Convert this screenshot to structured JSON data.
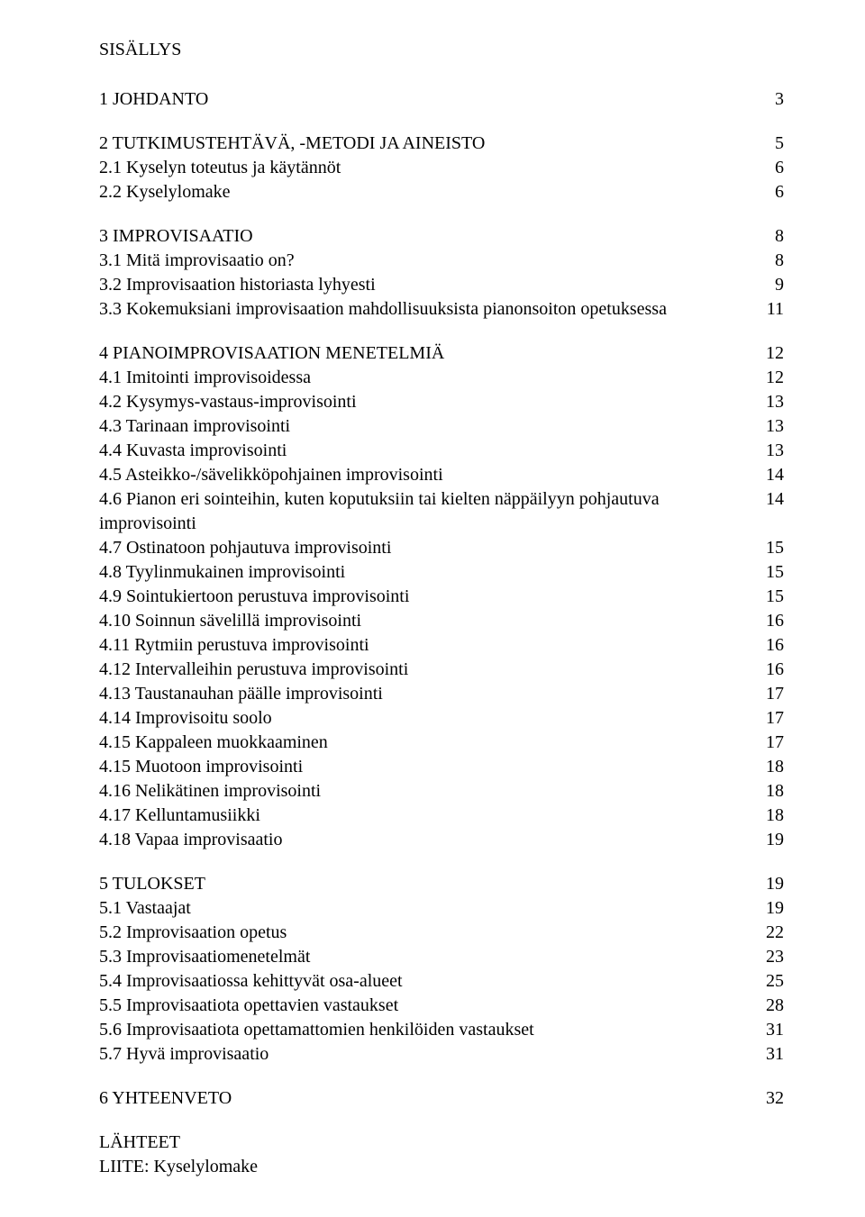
{
  "title": "SISÄLLYS",
  "sections": [
    {
      "heading": {
        "label": "1 JOHDANTO",
        "page": "3"
      },
      "subs": []
    },
    {
      "heading": {
        "label": "2 TUTKIMUSTEHTÄVÄ, -METODI JA AINEISTO",
        "page": "5"
      },
      "subs": [
        {
          "label": "2.1 Kyselyn toteutus ja käytännöt",
          "page": "6"
        },
        {
          "label": "2.2 Kyselylomake",
          "page": "6"
        }
      ]
    },
    {
      "heading": {
        "label": "3 IMPROVISAATIO",
        "page": "8"
      },
      "subs": [
        {
          "label": "3.1 Mitä improvisaatio on?",
          "page": "8"
        },
        {
          "label": "3.2 Improvisaation historiasta lyhyesti",
          "page": "9"
        },
        {
          "label": "3.3 Kokemuksiani improvisaation mahdollisuuksista pianonsoiton opetuksessa",
          "page": "11"
        }
      ]
    },
    {
      "heading": {
        "label": "4 PIANOIMPROVISAATION MENETELMIÄ",
        "page": "12"
      },
      "subs": [
        {
          "label": "4.1 Imitointi improvisoidessa",
          "page": "12"
        },
        {
          "label": "4.2 Kysymys-vastaus-improvisointi",
          "page": "13"
        },
        {
          "label": "4.3 Tarinaan improvisointi",
          "page": "13"
        },
        {
          "label": "4.4 Kuvasta improvisointi",
          "page": "13"
        },
        {
          "label": "4.5 Asteikko-/sävelikköpohjainen improvisointi",
          "page": "14"
        },
        {
          "label": "4.6 Pianon eri sointeihin, kuten koputuksiin tai kielten näppäilyyn pohjautuva improvisointi",
          "page": "14"
        },
        {
          "label": "4.7 Ostinatoon pohjautuva improvisointi",
          "page": "15"
        },
        {
          "label": "4.8 Tyylinmukainen improvisointi",
          "page": "15"
        },
        {
          "label": "4.9 Sointukiertoon perustuva improvisointi",
          "page": "15"
        },
        {
          "label": "4.10 Soinnun sävelillä improvisointi",
          "page": "16"
        },
        {
          "label": "4.11 Rytmiin perustuva improvisointi",
          "page": "16"
        },
        {
          "label": "4.12 Intervalleihin perustuva improvisointi",
          "page": "16"
        },
        {
          "label": "4.13 Taustanauhan päälle improvisointi",
          "page": "17"
        },
        {
          "label": "4.14 Improvisoitu soolo",
          "page": "17"
        },
        {
          "label": "4.15 Kappaleen muokkaaminen",
          "page": "17"
        },
        {
          "label": "4.15 Muotoon improvisointi",
          "page": "18"
        },
        {
          "label": "4.16 Nelikätinen improvisointi",
          "page": "18"
        },
        {
          "label": "4.17 Kelluntamusiikki",
          "page": "18"
        },
        {
          "label": "4.18 Vapaa improvisaatio",
          "page": "19"
        }
      ]
    },
    {
      "heading": {
        "label": "5 TULOKSET",
        "page": "19"
      },
      "subs": [
        {
          "label": "5.1 Vastaajat",
          "page": "19"
        },
        {
          "label": "5.2 Improvisaation opetus",
          "page": "22"
        },
        {
          "label": "5.3 Improvisaatiomenetelmät",
          "page": "23"
        },
        {
          "label": "5.4 Improvisaatiossa kehittyvät osa-alueet",
          "page": "25"
        },
        {
          "label": "5.5 Improvisaatiota opettavien vastaukset",
          "page": "28"
        },
        {
          "label": "5.6 Improvisaatiota opettamattomien henkilöiden vastaukset",
          "page": "31"
        },
        {
          "label": "5.7 Hyvä improvisaatio",
          "page": "31"
        }
      ]
    },
    {
      "heading": {
        "label": "6 YHTEENVETO",
        "page": "32"
      },
      "subs": []
    }
  ],
  "back": [
    "LÄHTEET",
    "LIITE: Kyselylomake"
  ]
}
